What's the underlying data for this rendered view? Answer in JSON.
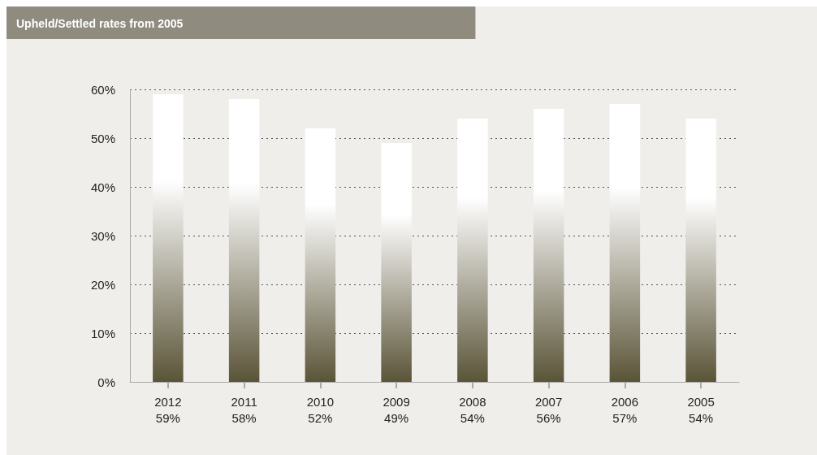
{
  "chart_data": {
    "type": "bar",
    "title": "Upheld/Settled rates from 2005",
    "categories": [
      "2012",
      "2011",
      "2010",
      "2009",
      "2008",
      "2007",
      "2006",
      "2005"
    ],
    "values": [
      59,
      58,
      52,
      49,
      54,
      56,
      57,
      54
    ],
    "value_labels": [
      "59%",
      "58%",
      "52%",
      "49%",
      "54%",
      "56%",
      "57%",
      "54%"
    ],
    "color": "#5a5437",
    "ylim": [
      0,
      60
    ],
    "yticks": [
      {
        "value": 0,
        "label": "0%"
      },
      {
        "value": 10,
        "label": "10%"
      },
      {
        "value": 20,
        "label": "20%"
      },
      {
        "value": 30,
        "label": "30%"
      },
      {
        "value": 40,
        "label": "40%"
      },
      {
        "value": 50,
        "label": "50%"
      },
      {
        "value": 60,
        "label": "60%"
      }
    ],
    "grid": "y"
  }
}
